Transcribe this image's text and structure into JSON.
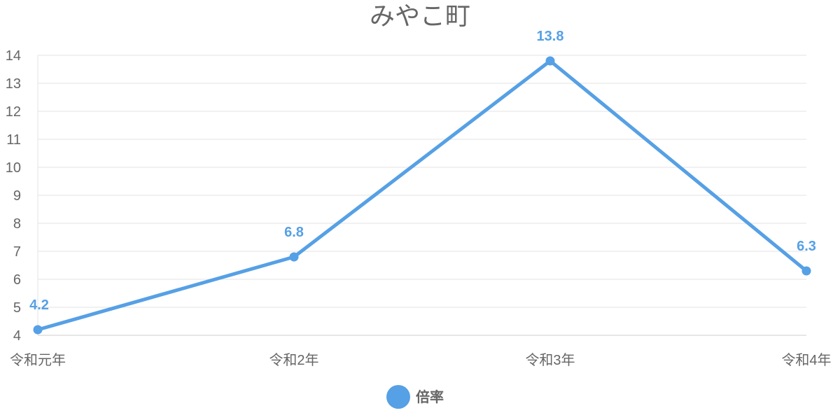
{
  "chart_data": {
    "type": "line",
    "title": "みやこ町",
    "categories": [
      "令和元年",
      "令和2年",
      "令和3年",
      "令和4年"
    ],
    "series": [
      {
        "name": "倍率",
        "values": [
          4.2,
          6.8,
          13.8,
          6.3
        ],
        "color": "#56a0e5"
      }
    ],
    "ylim": [
      4,
      14
    ],
    "yticks": [
      4,
      5,
      6,
      7,
      8,
      9,
      10,
      11,
      12,
      13,
      14
    ],
    "grid": true,
    "data_labels": true,
    "legend_position": "bottom"
  }
}
